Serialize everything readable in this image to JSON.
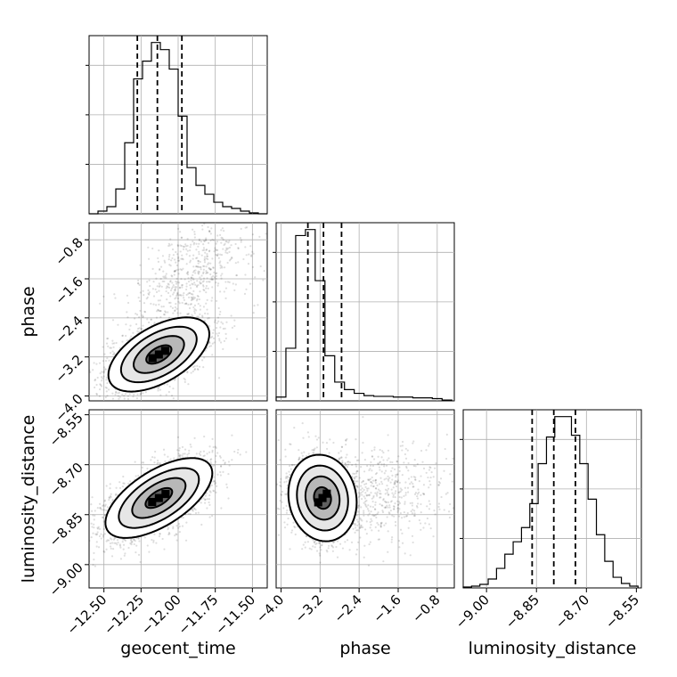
{
  "chart_data": {
    "type": "scatter",
    "variables": [
      "geocent_time",
      "phase",
      "luminosity_distance"
    ],
    "axes": {
      "geocent_time": {
        "label": "geocent_time",
        "range": [
          -12.6,
          -11.4
        ],
        "ticks": [
          -12.5,
          -12.25,
          -12.0,
          -11.75,
          -11.5
        ],
        "tick_labels": [
          "−12.50",
          "−12.25",
          "−12.00",
          "−11.75",
          "−11.50"
        ]
      },
      "phase": {
        "label": "phase",
        "range": [
          -4.1,
          -0.45
        ],
        "ticks": [
          -4.0,
          -3.2,
          -2.4,
          -1.6,
          -0.8
        ],
        "tick_labels": [
          "−4.0",
          "−3.2",
          "−2.4",
          "−1.6",
          "−0.8"
        ]
      },
      "luminosity_distance": {
        "label": "luminosity_distance",
        "range": [
          -9.07,
          -8.535
        ],
        "ticks": [
          -9.0,
          -8.85,
          -8.7,
          -8.55
        ],
        "tick_labels": [
          "−9.00",
          "−8.85",
          "−8.70",
          "−8.55"
        ]
      }
    },
    "histograms": {
      "geocent_time": {
        "bin_edges": [
          -12.6,
          -12.54,
          -12.48,
          -12.42,
          -12.36,
          -12.3,
          -12.24,
          -12.18,
          -12.12,
          -12.06,
          -12.0,
          -11.94,
          -11.88,
          -11.82,
          -11.76,
          -11.7,
          -11.64,
          -11.58,
          -11.52,
          -11.46,
          -11.4
        ],
        "counts": [
          0,
          3,
          8,
          28,
          80,
          152,
          172,
          193,
          185,
          163,
          110,
          52,
          32,
          22,
          13,
          8,
          6,
          3,
          1,
          0
        ],
        "quantiles": [
          -12.275,
          -12.14,
          -11.975
        ]
      },
      "phase": {
        "bin_edges": [
          -4.1,
          -3.9,
          -3.7,
          -3.5,
          -3.3,
          -3.1,
          -2.9,
          -2.7,
          -2.5,
          -2.3,
          -2.1,
          -1.9,
          -1.7,
          -1.5,
          -1.3,
          -1.1,
          -0.9,
          -0.7,
          -0.5
        ],
        "counts": [
          5,
          70,
          220,
          228,
          160,
          60,
          25,
          15,
          10,
          7,
          6,
          6,
          5,
          5,
          4,
          4,
          3,
          1
        ],
        "quantiles": [
          -3.45,
          -3.13,
          -2.76
        ]
      },
      "luminosity_distance": {
        "bin_edges": [
          -9.07,
          -9.045,
          -9.02,
          -8.995,
          -8.97,
          -8.945,
          -8.92,
          -8.895,
          -8.87,
          -8.845,
          -8.82,
          -8.795,
          -8.77,
          -8.745,
          -8.72,
          -8.695,
          -8.67,
          -8.645,
          -8.62,
          -8.595,
          -8.57,
          -8.545
        ],
        "counts": [
          1,
          2,
          4,
          10,
          22,
          38,
          52,
          68,
          95,
          140,
          170,
          193,
          193,
          172,
          140,
          100,
          60,
          30,
          12,
          5,
          2
        ],
        "quantiles": [
          -8.863,
          -8.798,
          -8.733
        ]
      }
    },
    "joint": [
      {
        "x": "geocent_time",
        "y": "phase",
        "center": [
          -12.13,
          -3.15
        ],
        "sd": [
          0.17,
          0.38
        ],
        "rho": 0.55,
        "tail": {
          "center": [
            -11.92,
            -1.5
          ],
          "sd": [
            0.22,
            0.6
          ],
          "rho": 0.6,
          "fraction": 0.25
        }
      },
      {
        "x": "geocent_time",
        "y": "luminosity_distance",
        "center": [
          -12.13,
          -8.8
        ],
        "sd": [
          0.18,
          0.06
        ],
        "rho": 0.62
      },
      {
        "x": "phase",
        "y": "luminosity_distance",
        "center": [
          -3.15,
          -8.8
        ],
        "sd": [
          0.35,
          0.065
        ],
        "rho": -0.1,
        "tail": {
          "center": [
            -1.8,
            -8.78
          ],
          "sd": [
            0.7,
            0.07
          ],
          "rho": 0.0,
          "fraction": 0.22
        }
      }
    ]
  }
}
